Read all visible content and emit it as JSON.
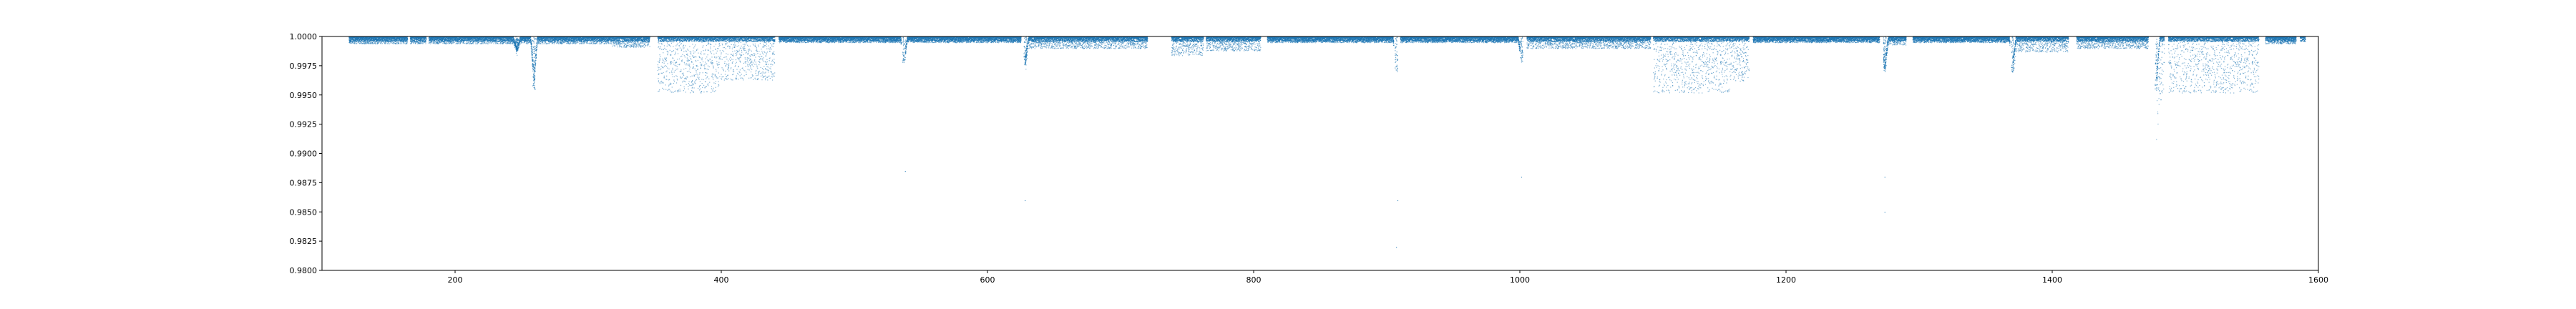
{
  "chart_data": {
    "type": "scatter",
    "title": "",
    "xlabel": "",
    "ylabel": "",
    "xlim": [
      100,
      1600
    ],
    "ylim": [
      0.98,
      1.0
    ],
    "grid": false,
    "legend": "none",
    "colors": {
      "points": "#1f77b4",
      "axes": "#000000",
      "background": "#ffffff"
    },
    "x_ticks": [
      200,
      400,
      600,
      800,
      1000,
      1200,
      1400,
      1600
    ],
    "x_tick_labels": [
      "200",
      "400",
      "600",
      "800",
      "1000",
      "1200",
      "1400",
      "1600"
    ],
    "y_ticks": [
      0.98,
      0.9825,
      0.985,
      0.9875,
      0.99,
      0.9925,
      0.995,
      0.9975,
      1.0
    ],
    "y_tick_labels": [
      "0.9800",
      "0.9825",
      "0.9850",
      "0.9875",
      "0.9900",
      "0.9925",
      "0.9950",
      "0.9975",
      "1.0000"
    ],
    "series": [
      {
        "baseline": 1.0,
        "data_start": 120,
        "data_end": 1590,
        "baseline_scatter_depth": 0.0004,
        "observing_segments": [
          {
            "x": [
              120,
              164
            ],
            "scatter_depth": 0.0006
          },
          {
            "x": [
              166,
              178
            ],
            "scatter_depth": 0.0006
          },
          {
            "x": [
              180,
              318
            ],
            "scatter_depth": 0.0006
          },
          {
            "x": [
              318,
              346
            ],
            "scatter_depth": 0.0009
          },
          {
            "x": [
              352,
              398
            ],
            "scatter_depth": 0.0048
          },
          {
            "x": [
              398,
              440
            ],
            "scatter_depth": 0.0037
          },
          {
            "x": [
              443,
              535
            ],
            "scatter_depth": 0.0005
          },
          {
            "x": [
              538,
              625
            ],
            "scatter_depth": 0.0005
          },
          {
            "x": [
              628,
              720
            ],
            "scatter_depth": 0.001
          },
          {
            "x": [
              738,
              762
            ],
            "scatter_depth": 0.0016
          },
          {
            "x": [
              764,
              805
            ],
            "scatter_depth": 0.0012
          },
          {
            "x": [
              810,
              905
            ],
            "scatter_depth": 0.0005
          },
          {
            "x": [
              910,
              1000
            ],
            "scatter_depth": 0.0005
          },
          {
            "x": [
              1005,
              1098
            ],
            "scatter_depth": 0.001
          },
          {
            "x": [
              1100,
              1158
            ],
            "scatter_depth": 0.0048
          },
          {
            "x": [
              1158,
              1172
            ],
            "scatter_depth": 0.0038
          },
          {
            "x": [
              1175,
              1270
            ],
            "scatter_depth": 0.0005
          },
          {
            "x": [
              1273,
              1290
            ],
            "scatter_depth": 0.0007
          },
          {
            "x": [
              1295,
              1368
            ],
            "scatter_depth": 0.0005
          },
          {
            "x": [
              1370,
              1412
            ],
            "scatter_depth": 0.0013
          },
          {
            "x": [
              1418,
              1472
            ],
            "scatter_depth": 0.001
          },
          {
            "x": [
              1478,
              1484
            ],
            "scatter_depth": 0.0055
          },
          {
            "x": [
              1487,
              1555
            ],
            "scatter_depth": 0.0048
          },
          {
            "x": [
              1560,
              1583
            ],
            "scatter_depth": 0.0006
          },
          {
            "x": [
              1586,
              1590
            ],
            "scatter_depth": 0.0004
          }
        ],
        "transits": [
          {
            "x": 246,
            "depth": 0.0012
          },
          {
            "x": 259,
            "depth": 0.0045
          },
          {
            "x": 537,
            "depth": 0.0022
          },
          {
            "x": 628,
            "depth": 0.0025
          },
          {
            "x": 907,
            "depth": 0.003
          },
          {
            "x": 1001,
            "depth": 0.0022
          },
          {
            "x": 1274,
            "depth": 0.003
          },
          {
            "x": 1370,
            "depth": 0.003
          },
          {
            "x": 1478,
            "depth": 0.0045
          }
        ],
        "outliers": [
          {
            "x": 538,
            "y": 0.9885
          },
          {
            "x": 628,
            "y": 0.986
          },
          {
            "x": 907,
            "y": 0.982
          },
          {
            "x": 908,
            "y": 0.986
          },
          {
            "x": 1001,
            "y": 0.988
          },
          {
            "x": 1274,
            "y": 0.985
          },
          {
            "x": 1274,
            "y": 0.988
          }
        ]
      }
    ]
  }
}
